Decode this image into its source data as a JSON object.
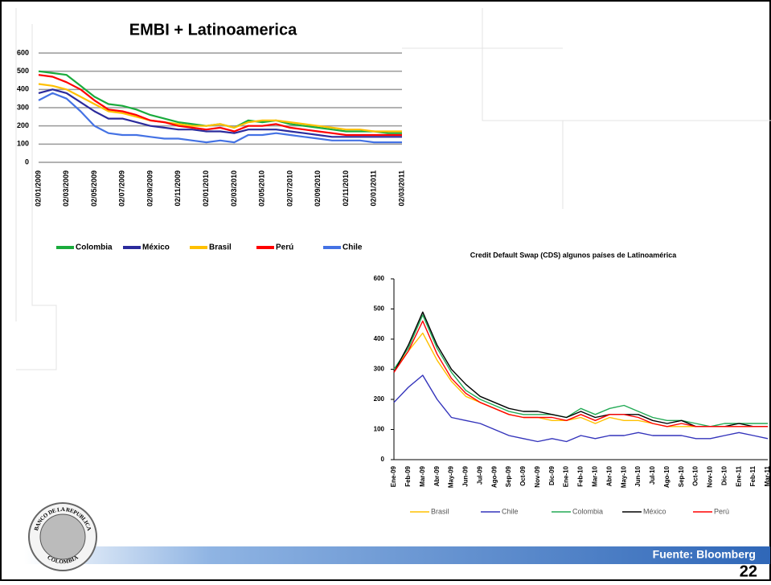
{
  "chart_data": [
    {
      "type": "line",
      "title": "EMBI + Latinoamerica",
      "categories": [
        "02/01/2009",
        null,
        "02/03/2009",
        null,
        "02/05/2009",
        null,
        "02/07/2009",
        null,
        "02/09/2009",
        null,
        "02/11/2009",
        null,
        "02/01/2010",
        null,
        "02/03/2010",
        null,
        "02/05/2010",
        null,
        "02/07/2010",
        null,
        "02/09/2010",
        null,
        "02/11/2010",
        null,
        "02/01/2011",
        null,
        "02/03/2011"
      ],
      "series": [
        {
          "name": "Colombia",
          "color": "#1aab3c",
          "values": [
            500,
            490,
            480,
            420,
            360,
            320,
            310,
            290,
            260,
            240,
            220,
            210,
            200,
            210,
            190,
            230,
            220,
            230,
            210,
            200,
            190,
            180,
            170,
            170,
            170,
            160,
            160
          ]
        },
        {
          "name": "México",
          "color": "#2b2b9c",
          "values": [
            380,
            400,
            380,
            330,
            280,
            240,
            240,
            220,
            200,
            190,
            180,
            180,
            170,
            170,
            160,
            180,
            180,
            180,
            170,
            160,
            150,
            140,
            140,
            140,
            140,
            140,
            140
          ]
        },
        {
          "name": "Brasil",
          "color": "#ffc000",
          "values": [
            430,
            420,
            400,
            360,
            320,
            280,
            270,
            250,
            230,
            220,
            210,
            200,
            200,
            210,
            190,
            220,
            230,
            230,
            220,
            210,
            200,
            190,
            180,
            180,
            170,
            170,
            170
          ]
        },
        {
          "name": "Perú",
          "color": "#ff0000",
          "values": [
            480,
            470,
            440,
            400,
            340,
            290,
            280,
            260,
            230,
            220,
            200,
            190,
            180,
            190,
            170,
            200,
            200,
            210,
            190,
            180,
            170,
            160,
            150,
            150,
            150,
            150,
            150
          ]
        },
        {
          "name": "Chile",
          "color": "#4472e4",
          "values": [
            340,
            380,
            350,
            280,
            200,
            160,
            150,
            150,
            140,
            130,
            130,
            120,
            110,
            120,
            110,
            150,
            150,
            160,
            150,
            140,
            130,
            120,
            120,
            120,
            110,
            110,
            110
          ]
        }
      ],
      "ylim": [
        0,
        600
      ],
      "yticks": [
        0,
        100,
        200,
        300,
        400,
        500,
        600
      ],
      "grid": true
    },
    {
      "type": "line",
      "title": "Credit Default Swap (CDS) algunos países de Latinoamérica",
      "categories": [
        "Ene-09",
        "Feb-09",
        "Mar-09",
        "Abr-09",
        "May-09",
        "Jun-09",
        "Jul-09",
        "Ago-09",
        "Sep-09",
        "Oct-09",
        "Nov-09",
        "Dic-09",
        "Ene-10",
        "Feb-10",
        "Mar-10",
        "Abr-10",
        "May-10",
        "Jun-10",
        "Jul-10",
        "Ago-10",
        "Sep-10",
        "Oct-10",
        "Nov-10",
        "Dic-10",
        "Ene-11",
        "Feb-11",
        "Mar-11"
      ],
      "series": [
        {
          "name": "Brasil",
          "color": "#ffc000",
          "values": [
            300,
            360,
            420,
            330,
            260,
            210,
            190,
            170,
            150,
            140,
            140,
            130,
            130,
            140,
            120,
            140,
            130,
            130,
            120,
            110,
            110,
            110,
            110,
            110,
            110,
            110,
            110
          ]
        },
        {
          "name": "Chile",
          "color": "#3333bb",
          "values": [
            190,
            240,
            280,
            200,
            140,
            130,
            120,
            100,
            80,
            70,
            60,
            70,
            60,
            80,
            70,
            80,
            80,
            90,
            80,
            80,
            80,
            70,
            70,
            80,
            90,
            80,
            70
          ]
        },
        {
          "name": "Colombia",
          "color": "#22aa55",
          "values": [
            300,
            370,
            480,
            370,
            290,
            230,
            200,
            180,
            160,
            150,
            150,
            150,
            140,
            170,
            150,
            170,
            180,
            160,
            140,
            130,
            130,
            120,
            110,
            120,
            120,
            120,
            120
          ]
        },
        {
          "name": "México",
          "color": "#000000",
          "values": [
            290,
            380,
            490,
            380,
            300,
            250,
            210,
            190,
            170,
            160,
            160,
            150,
            140,
            160,
            140,
            150,
            150,
            150,
            130,
            120,
            130,
            110,
            110,
            110,
            120,
            110,
            110
          ]
        },
        {
          "name": "Perú",
          "color": "#ff0000",
          "values": [
            290,
            360,
            460,
            350,
            270,
            220,
            190,
            170,
            150,
            140,
            140,
            140,
            130,
            150,
            130,
            150,
            150,
            140,
            120,
            110,
            120,
            110,
            110,
            110,
            110,
            110,
            110
          ]
        }
      ],
      "ylim": [
        0,
        600
      ],
      "yticks": [
        0,
        100,
        200,
        300,
        400,
        500,
        600
      ],
      "grid": false
    }
  ],
  "footer": {
    "source": "Fuente: Bloomberg",
    "page": "22"
  },
  "logo": {
    "top": "BANCO DE LA REPUBLICA",
    "bottom": "COLOMBIA"
  }
}
